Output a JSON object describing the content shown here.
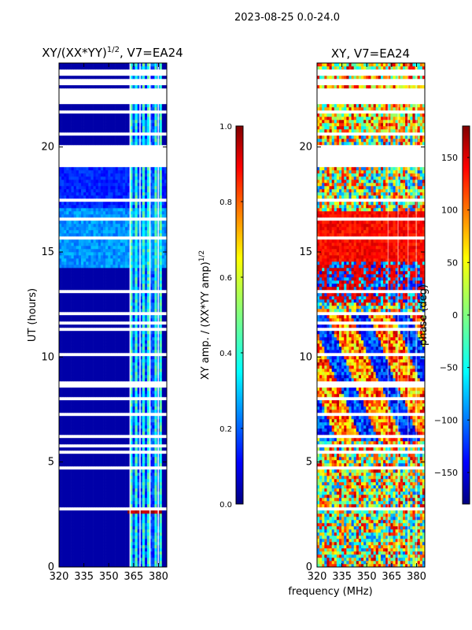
{
  "figure": {
    "suptitle": "2023-08-25 0.0-24.0",
    "xlabel": "frequency (MHz)"
  },
  "chart_data": [
    {
      "type": "heatmap",
      "title_main": "XY/(XX*YY)",
      "title_sup": "1/2",
      "title_rest": ", V7=EA24",
      "xlabel": "",
      "ylabel": "UT (hours)",
      "xlim": [
        320,
        385
      ],
      "ylim": [
        0,
        24
      ],
      "x_ticks": [
        320,
        335,
        350,
        365,
        380
      ],
      "y_ticks": [
        0,
        5,
        10,
        15,
        20
      ],
      "colorbar": {
        "label_main": "XY amp. / (XX*YY amp)",
        "label_sup": "1/2",
        "range": [
          0.0,
          1.0
        ],
        "ticks": [
          "0.0",
          "0.2",
          "0.4",
          "0.6",
          "0.8",
          "1.0"
        ],
        "tick_values": [
          0.0,
          0.2,
          0.4,
          0.6,
          0.8,
          1.0
        ],
        "colormap": "jet"
      }
    },
    {
      "type": "heatmap",
      "title": "XY, V7=EA24",
      "xlabel": "",
      "ylabel": "",
      "xlim": [
        320,
        385
      ],
      "ylim": [
        0,
        24
      ],
      "x_ticks": [
        320,
        335,
        350,
        365,
        380
      ],
      "y_ticks": [
        0,
        5,
        10,
        15,
        20
      ],
      "colorbar": {
        "label": "phase (deg)",
        "range": [
          -180,
          180
        ],
        "ticks": [
          "−150",
          "−100",
          "−50",
          "0",
          "50",
          "100",
          "150"
        ],
        "tick_values": [
          -150,
          -100,
          -50,
          0,
          50,
          100,
          150
        ],
        "colormap": "jet"
      }
    }
  ],
  "colors": {
    "axis": "#000000",
    "background": "#ffffff"
  }
}
